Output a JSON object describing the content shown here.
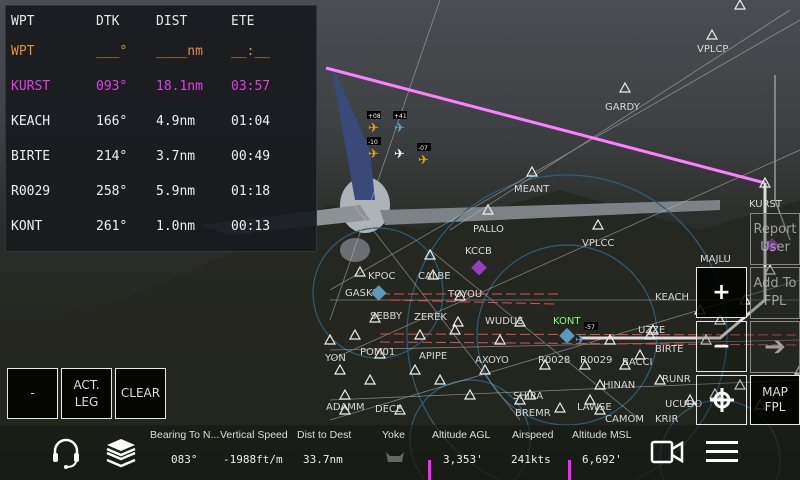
{
  "flight_plan": {
    "headers": [
      "WPT",
      "DTK",
      "DIST",
      "ETE"
    ],
    "next_row": [
      "WPT",
      "___°",
      "____nm",
      "__:__"
    ],
    "rows": [
      [
        "KURST",
        "093°",
        "18.1nm",
        "03:57"
      ],
      [
        "KEACH",
        "166°",
        "4.9nm",
        "01:04"
      ],
      [
        "BIRTE",
        "214°",
        "3.7nm",
        "00:49"
      ],
      [
        "R0029",
        "258°",
        "5.9nm",
        "01:18"
      ],
      [
        "KONT",
        "261°",
        "1.0nm",
        "00:13"
      ]
    ]
  },
  "left_buttons": {
    "dash": "-",
    "act_leg": "ACT. LEG",
    "clear": "CLEAR"
  },
  "map_controls": {
    "zoom_in": "+",
    "zoom_out": "−",
    "report_user": "Report User",
    "add_to_fpl": "Add To FPL",
    "map_fpl_1": "MAP",
    "map_fpl_2": "FPL"
  },
  "map": {
    "waypoints": [
      "VPLCP",
      "GARDY",
      "MEANT",
      "KURST",
      "PALLO",
      "VPLCC",
      "KCCB",
      "KPOC",
      "CALBE",
      "GASKI",
      "TOYOU",
      "SEBBY",
      "ZEREK",
      "WUDUS",
      "KONT",
      "UZZE",
      "YON",
      "POM01",
      "APIPE",
      "AXOYO",
      "R0028",
      "R0029",
      "BACCI",
      "HINAN",
      "SHIRA",
      "BREMR",
      "LAWSE",
      "ADAMM",
      "DECE",
      "UCUDO",
      "CAMOM",
      "KRIR",
      "MAJLU",
      "KEACH",
      "BIRTE",
      "RUNR"
    ],
    "traffic_tags": [
      "+08",
      "+41",
      "-10",
      "-07",
      "-57"
    ],
    "route_color": "#ff80ff",
    "active_airport_color": "#80ff80"
  },
  "bottom_bar": {
    "items": [
      {
        "label": "Bearing To N...",
        "value": "083°"
      },
      {
        "label": "Vertical Speed",
        "value": "-1988ft/m"
      },
      {
        "label": "Dist to Dest",
        "value": "33.7nm"
      },
      {
        "label": "Yoke",
        "value": ""
      },
      {
        "label": "Altitude AGL",
        "value": "3,353'"
      },
      {
        "label": "Airspeed",
        "value": "241kts"
      },
      {
        "label": "Altitude MSL",
        "value": "6,692'"
      }
    ],
    "icons": [
      "headset-icon",
      "layers-icon",
      "camera-icon",
      "menu-icon"
    ]
  }
}
